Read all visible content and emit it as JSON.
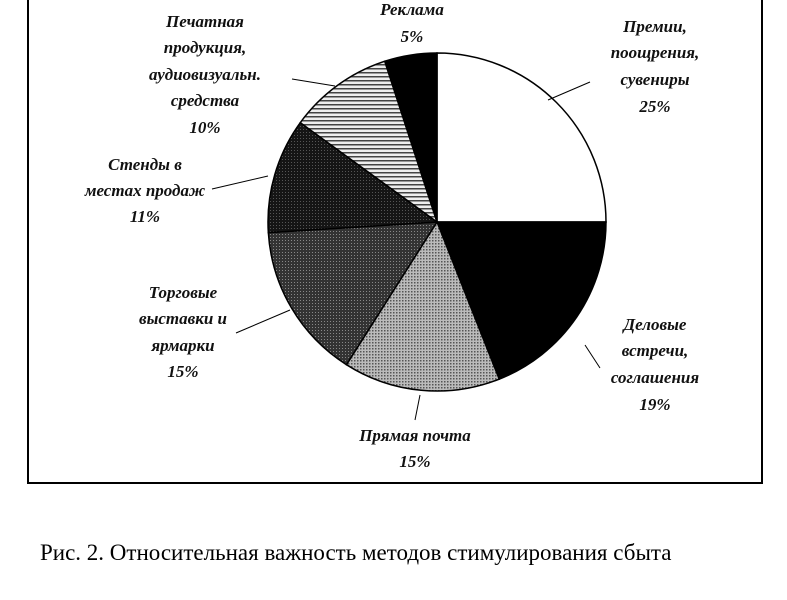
{
  "chart_data": {
    "type": "pie",
    "title": "",
    "start_angle": "12 o'clock, clockwise",
    "slices": [
      {
        "label": [
          "Премии,",
          "поощрения,",
          "сувениры"
        ],
        "value": 25,
        "pct_label": "25%",
        "fill": "white"
      },
      {
        "label": [
          "Деловые",
          "встречи,",
          "соглашения"
        ],
        "value": 19,
        "pct_label": "19%",
        "fill": "black"
      },
      {
        "label": [
          "Прямая почта"
        ],
        "value": 15,
        "pct_label": "15%",
        "fill": "light-dotted"
      },
      {
        "label": [
          "Торговые",
          "выставки и",
          "ярмарки"
        ],
        "value": 15,
        "pct_label": "15%",
        "fill": "dark-gray"
      },
      {
        "label": [
          "Стенды в",
          "местах продаж"
        ],
        "value": 11,
        "pct_label": "11%",
        "fill": "very-dark"
      },
      {
        "label": [
          "Печатная",
          "продукция,",
          "аудиовизуальн.",
          "средства"
        ],
        "value": 10,
        "pct_label": "10%",
        "fill": "hatched"
      },
      {
        "label": [
          "Реклама"
        ],
        "value": 5,
        "pct_label": "5%",
        "fill": "black"
      }
    ]
  },
  "caption": "Рис. 2. Относительная важность методов стимулирования сбыта"
}
